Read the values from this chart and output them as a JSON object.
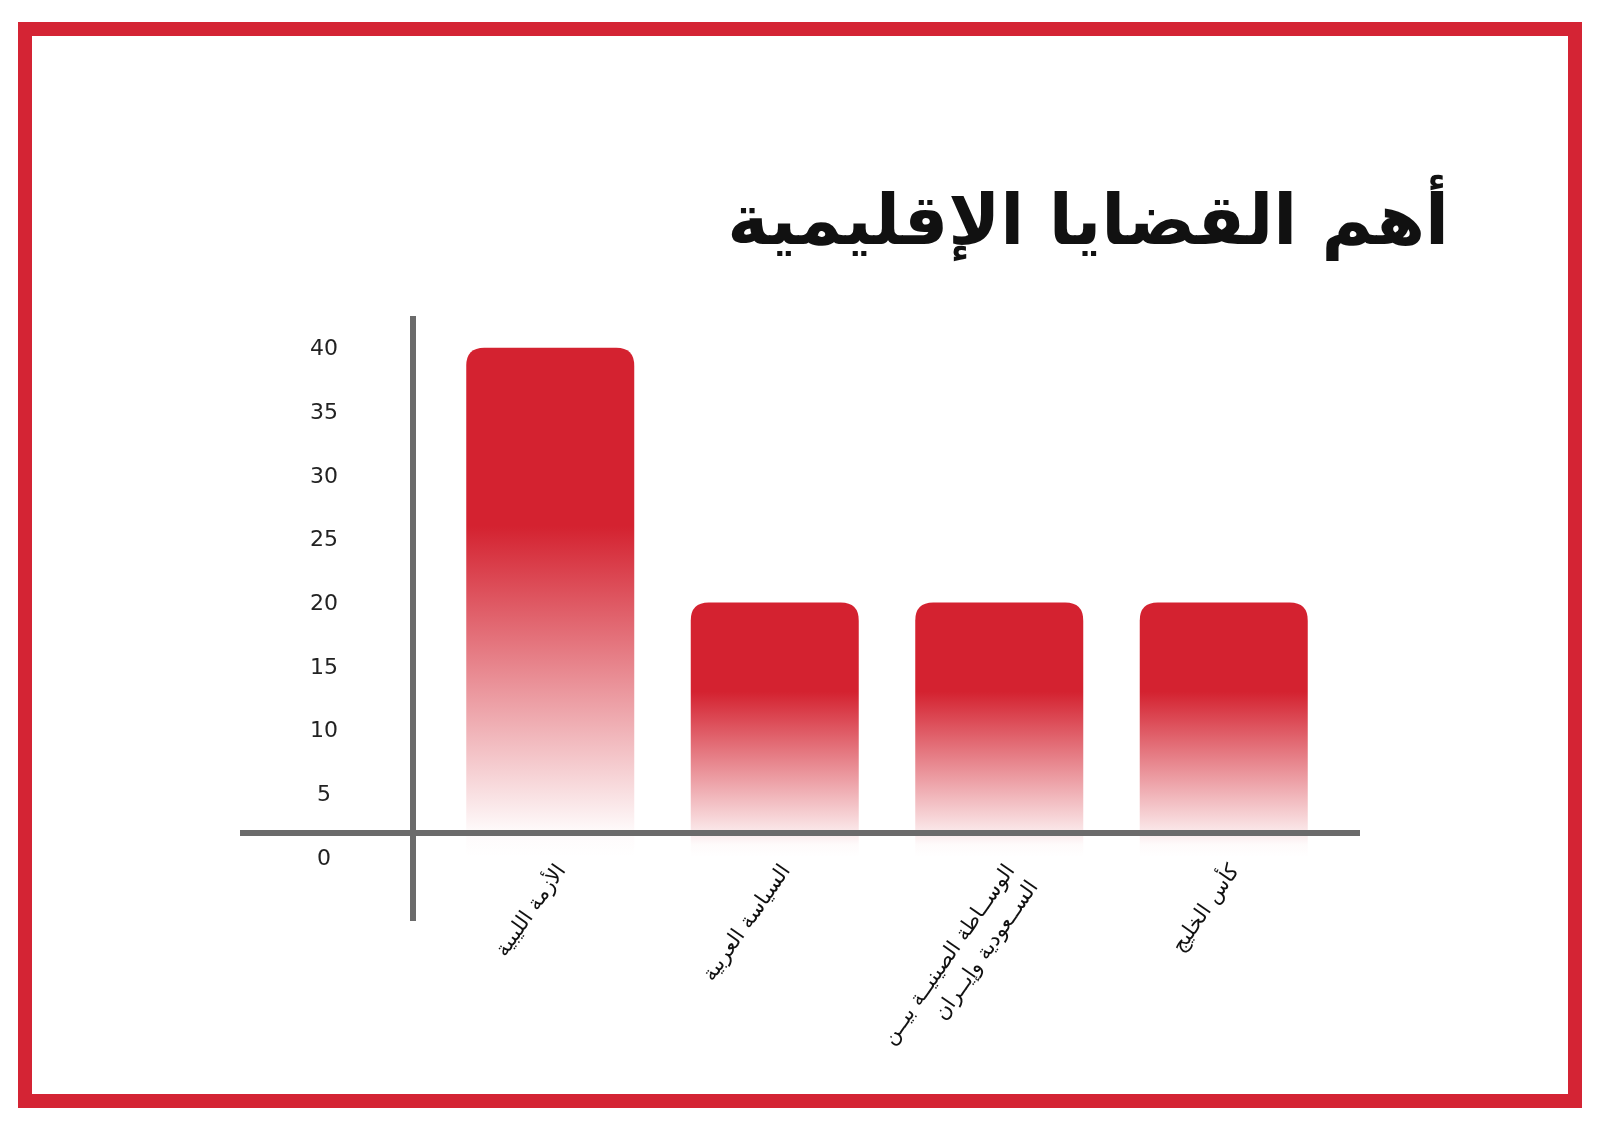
{
  "chart_data": {
    "type": "bar",
    "title": "أهم القضايا الإقليمية",
    "categories": [
      "الأزمة الليبية",
      "السياسة العربية",
      "الوســاطة الصينيــة بيــن\nالســعودية وإيــران",
      "كأس الخليج"
    ],
    "values": [
      40,
      20,
      20,
      20
    ],
    "color": "#d42230",
    "ylim": [
      -5,
      42.5
    ],
    "yticks": [
      0,
      5,
      10,
      15,
      20,
      25,
      30,
      35,
      40
    ]
  }
}
